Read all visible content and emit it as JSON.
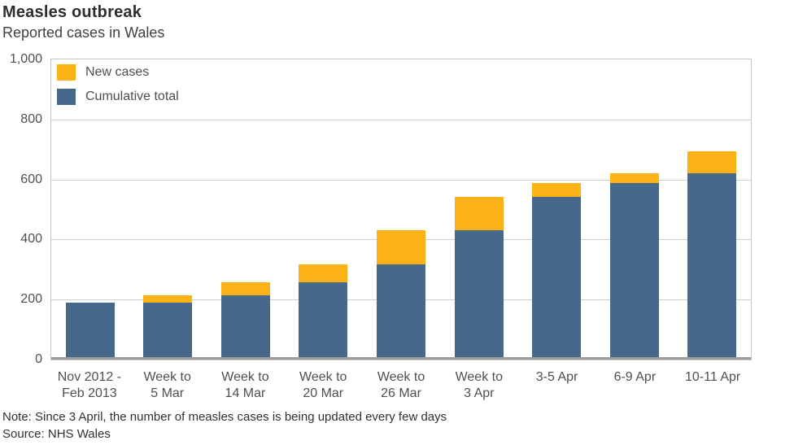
{
  "header": {
    "title": "Measles outbreak",
    "subtitle": "Reported cases in Wales"
  },
  "footer": {
    "note": "Note: Since 3 April, the number of measles cases is being updated every few days",
    "source": "Source: NHS Wales"
  },
  "colors": {
    "new_cases": "#FBB216",
    "cumulative_total": "#45688B",
    "gridline": "#cfcfcf",
    "axis_band": "#9c9c9c",
    "text": "#4f4f4f"
  },
  "chart_data": {
    "type": "bar",
    "stacked": true,
    "title": "Measles outbreak",
    "subtitle": "Reported cases in Wales",
    "categories": [
      [
        "Nov 2012 -",
        "Feb 2013"
      ],
      [
        "Week to",
        "5 Mar"
      ],
      [
        "Week to",
        "14 Mar"
      ],
      [
        "Week to",
        "20 Mar"
      ],
      [
        "Week to",
        "26 Mar"
      ],
      [
        "Week to",
        "3 Apr"
      ],
      [
        "3-5 Apr"
      ],
      [
        "6-9 Apr"
      ],
      [
        "10-11 Apr"
      ]
    ],
    "series": [
      {
        "name": "Cumulative total",
        "color": "#45688B",
        "values": [
          189,
          189,
          215,
          258,
          316,
          432,
          541,
          588,
          620
        ]
      },
      {
        "name": "New cases",
        "color": "#FBB216",
        "values": [
          0,
          26,
          43,
          58,
          116,
          109,
          47,
          32,
          73
        ]
      }
    ],
    "stack_totals": [
      189,
      215,
      258,
      316,
      432,
      541,
      588,
      620,
      693
    ],
    "ylim": [
      0,
      1000
    ],
    "yticks": [
      {
        "value": 0,
        "label": "0"
      },
      {
        "value": 200,
        "label": "200"
      },
      {
        "value": 400,
        "label": "400"
      },
      {
        "value": 600,
        "label": "600"
      },
      {
        "value": 800,
        "label": "800"
      },
      {
        "value": 1000,
        "label": "1,000"
      }
    ],
    "legend": [
      {
        "label": "New cases",
        "color": "#FBB216"
      },
      {
        "label": "Cumulative total",
        "color": "#45688B"
      }
    ],
    "legend_position": "top-left-inside",
    "grid": "horizontal"
  }
}
